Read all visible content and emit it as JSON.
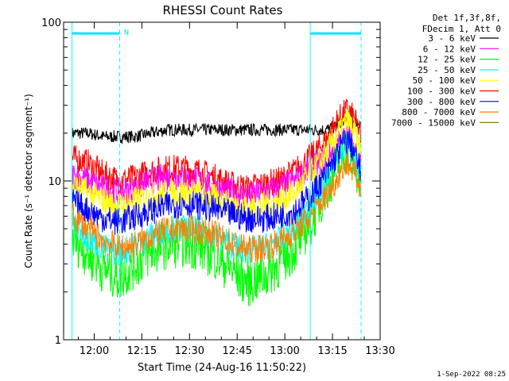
{
  "chart_data": {
    "type": "line",
    "title": "RHESSI Count Rates",
    "xlabel": "Start Time (24-Aug-16 11:50:22)",
    "ylabel": "Count Rate (s⁻¹ detector segment⁻¹)",
    "y_scale": "log",
    "ylim": [
      1,
      100
    ],
    "x_range": [
      "11:50:22",
      "13:30"
    ],
    "x_ticks": [
      "12:00",
      "12:15",
      "12:30",
      "12:45",
      "13:00",
      "13:15",
      "13:30"
    ],
    "y_ticks": [
      "1",
      "10",
      "100"
    ],
    "grid": false,
    "legend_header": [
      "Det 1f,3f,8f,",
      "FDecim 1, Att 0"
    ],
    "attenuator_marker": "N",
    "footer": "1-Sep-2022 08:25",
    "x": [
      "11:53",
      "11:58",
      "12:03",
      "12:08",
      "12:13",
      "12:18",
      "12:23",
      "12:28",
      "12:33",
      "12:38",
      "12:43",
      "12:48",
      "12:53",
      "12:58",
      "13:03",
      "13:08",
      "13:13",
      "13:16",
      "13:18",
      "13:20",
      "13:22",
      "13:24"
    ],
    "series": [
      {
        "name": "3 - 6 keV",
        "color": "#000000",
        "values": [
          20,
          20,
          19,
          19,
          19,
          20,
          21,
          21,
          21,
          21,
          21,
          21,
          21,
          21,
          21,
          21,
          21,
          22,
          24,
          25,
          24,
          23
        ]
      },
      {
        "name": "6 - 12 keV",
        "color": "#ff00ff",
        "values": [
          11,
          10,
          9,
          8.5,
          9,
          10,
          10.5,
          10.5,
          10,
          9,
          8.5,
          8,
          8.5,
          9,
          10,
          12,
          14,
          16,
          18,
          20,
          16,
          13
        ]
      },
      {
        "name": "12 - 25 keV",
        "color": "#00ff00",
        "values": [
          4.5,
          3.5,
          2.8,
          2.5,
          3,
          3.6,
          4,
          4.1,
          3.9,
          3.4,
          2.8,
          2.3,
          2.5,
          3,
          3.8,
          5.5,
          9,
          12,
          15,
          16,
          13,
          9
        ]
      },
      {
        "name": "25 - 50 keV",
        "color": "#00ffff",
        "values": [
          5.5,
          4.5,
          3.8,
          3.5,
          4,
          4.5,
          5,
          5,
          4.9,
          4.5,
          4,
          3.6,
          3.8,
          4.2,
          5,
          7,
          10,
          13,
          16,
          17,
          14,
          10
        ]
      },
      {
        "name": "50 - 100 keV",
        "color": "#ffff00",
        "values": [
          9.5,
          8.5,
          7.5,
          7,
          7.5,
          8,
          8.5,
          8.5,
          8.3,
          7.8,
          7.2,
          6.8,
          7,
          7.5,
          8.5,
          11,
          15,
          19,
          22,
          24,
          20,
          15
        ]
      },
      {
        "name": "100 - 300 keV",
        "color": "#ff0000",
        "values": [
          14,
          13,
          11,
          10,
          10.5,
          11.5,
          12,
          12,
          11.5,
          10.5,
          9.5,
          9,
          9.5,
          10,
          11.5,
          14,
          18,
          23,
          26,
          28,
          24,
          19
        ]
      },
      {
        "name": "300 - 800 keV",
        "color": "#0000ff",
        "values": [
          7.5,
          6.5,
          5.8,
          5.5,
          6,
          6.5,
          7,
          7.2,
          7,
          6.6,
          6.2,
          5.8,
          5.8,
          6,
          6.5,
          8,
          11,
          14,
          17,
          18,
          15,
          11
        ]
      },
      {
        "name": "800 - 7000 keV",
        "color": "#ff8000",
        "values": [
          6,
          5,
          4.2,
          3.8,
          4,
          4.5,
          4.9,
          5,
          4.9,
          4.6,
          4.1,
          3.7,
          3.8,
          4.1,
          4.8,
          6,
          8,
          10,
          12,
          13,
          11,
          9
        ]
      },
      {
        "name": "7000 - 15000 keV",
        "color": "#808000",
        "values": [
          null,
          null,
          null,
          null,
          null,
          null,
          null,
          null,
          null,
          null,
          null,
          null,
          null,
          null,
          null,
          null,
          null,
          null,
          null,
          null,
          null,
          null
        ]
      }
    ],
    "vertical_markers": [
      {
        "time": "11:53",
        "color": "#00ffff",
        "style": "solid"
      },
      {
        "time": "12:08",
        "color": "#00ffff",
        "style": "dashed"
      },
      {
        "time": "13:08",
        "color": "#00ffff",
        "style": "solid"
      },
      {
        "time": "13:24",
        "color": "#00ffff",
        "style": "dashed"
      }
    ],
    "attenuator_bars": [
      {
        "start": "11:53",
        "end": "12:08",
        "value": 85
      },
      {
        "start": "13:08",
        "end": "13:24",
        "value": 85
      }
    ]
  }
}
